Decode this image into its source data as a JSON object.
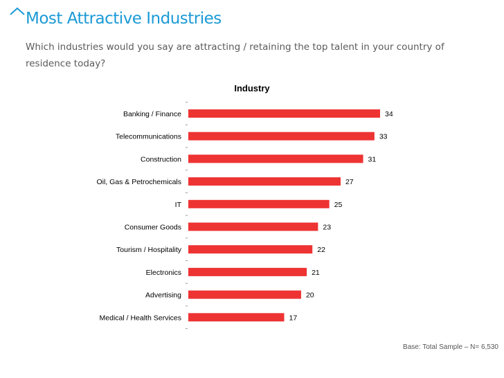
{
  "header": {
    "title": "Most Attractive Industries",
    "subtitle": "Which industries would you say are attracting / retaining the top talent in your country of residence today?"
  },
  "colors": {
    "accent": "#1a9ad6",
    "bar": "#ee3333",
    "title": "#1a9ad6"
  },
  "chart_data": {
    "type": "bar",
    "orientation": "horizontal",
    "title": "Industry",
    "categories": [
      "Banking / Finance",
      "Telecommunications",
      "Construction",
      "Oil, Gas & Petrochemicals",
      "IT",
      "Consumer Goods",
      "Tourism / Hospitality",
      "Electronics",
      "Advertising",
      "Medical / Health Services"
    ],
    "values": [
      34,
      33,
      31,
      27,
      25,
      23,
      22,
      21,
      20,
      17
    ],
    "xlabel": "",
    "ylabel": "",
    "xlim": [
      0,
      34
    ],
    "grid": false,
    "data_labels": true,
    "legend": "none"
  },
  "footer": {
    "base_note": "Base: Total Sample – N= 6,530"
  }
}
